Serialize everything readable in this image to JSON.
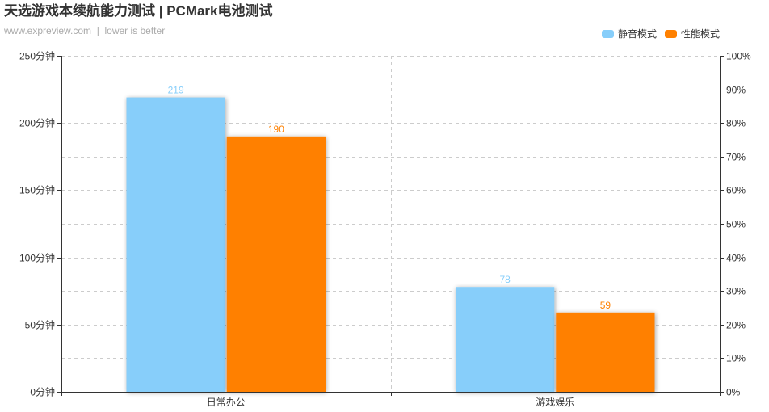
{
  "chart_data": {
    "type": "bar",
    "title": "天选游戏本续航能力测试 | PCMark电池测试",
    "subtitle": "www.expreview.com  |  lower is better",
    "categories": [
      "日常办公",
      "游戏娱乐"
    ],
    "series": [
      {
        "name": "静音模式",
        "values": [
          219,
          78
        ],
        "color": "#87CEFA"
      },
      {
        "name": "性能模式",
        "values": [
          190,
          59
        ],
        "color": "#FF8000"
      }
    ],
    "ylim": [
      0,
      250
    ],
    "yticks": [
      0,
      50,
      100,
      150,
      200,
      250
    ],
    "ytick_labels": [
      "0分钟",
      "50分钟",
      "100分钟",
      "150分钟",
      "200分钟",
      "250分钟"
    ],
    "y2lim": [
      0,
      100
    ],
    "y2ticks": [
      0,
      10,
      20,
      30,
      40,
      50,
      60,
      70,
      80,
      90,
      100
    ],
    "y2tick_labels": [
      "0%",
      "10%",
      "20%",
      "30%",
      "40%",
      "50%",
      "60%",
      "70%",
      "80%",
      "90%",
      "100%"
    ],
    "grid": true,
    "legend": "top-right"
  }
}
